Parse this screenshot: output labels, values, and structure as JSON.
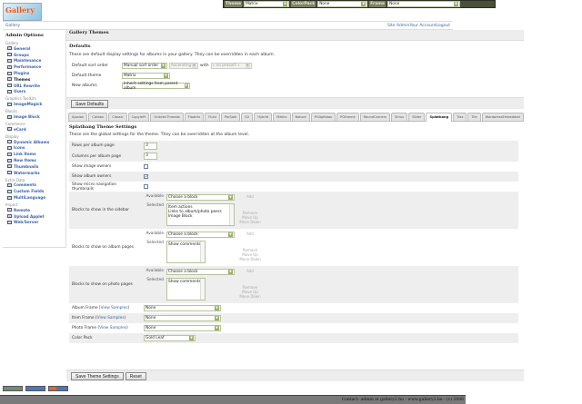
{
  "topbar": {
    "theme_label": "Theme",
    "theme_value": "Matrix",
    "colorpack_label": "ColorPack",
    "colorpack_value": "None",
    "frame_label": "Frame",
    "frame_value": "None"
  },
  "logo": {
    "text": "Gallery"
  },
  "breadcrumb": {
    "root": "Gallery"
  },
  "userlinks": [
    "Site Admin",
    "Your Account",
    "Logout"
  ],
  "sidebar": {
    "title": "Admin Options",
    "groups": [
      {
        "name": "Gallery",
        "items": [
          "General",
          "Groups",
          "Maintenance",
          "Performance",
          "Plugins",
          "Themes",
          "URL Rewrite",
          "Users"
        ]
      },
      {
        "name": "Graphics Toolkits",
        "items": [
          "ImageMagick"
        ]
      },
      {
        "name": "Blocks",
        "items": [
          "Image Block"
        ]
      },
      {
        "name": "Commerce",
        "items": [
          "eCard"
        ]
      },
      {
        "name": "Display",
        "items": [
          "Dynamic Albums",
          "Icons",
          "Link Items",
          "New Items",
          "Thumbnails",
          "Watermarks"
        ]
      },
      {
        "name": "Extra Data",
        "items": [
          "Comments",
          "Custom Fields",
          "MultiLanguage"
        ]
      },
      {
        "name": "Import",
        "items": [
          "Remote",
          "Upload Applet",
          "Web/Server"
        ]
      }
    ],
    "current": "Themes"
  },
  "main": {
    "title": "Gallery Themes",
    "defaults": {
      "heading": "Defaults",
      "desc": "These are default display settings for albums in your gallery. They can be overridden in each album.",
      "sort_label": "Default sort order",
      "sort_value": "Manual sort order",
      "sort_dir": "Ascending",
      "with_label": "with",
      "presort": "« no presort »",
      "theme_label": "Default theme",
      "theme_value": "Matrix",
      "new_label": "New albums",
      "new_value": "Inherit settings from parent album",
      "save": "Save Defaults"
    },
    "tabs": [
      "Ajaxian",
      "Carbon",
      "Classic",
      "CopyleFt",
      "EclecticThreads",
      "Floatrix",
      "Fluid",
      "PorSale",
      "G2",
      "Hybrid",
      "Matrix",
      "Nature",
      "PGlightbox",
      "PGtheme",
      "RoundCorners",
      "Siriux",
      "Slider",
      "Splatbang",
      "Tias",
      "Tile",
      "WordpressEmbedded"
    ],
    "active_tab": "Splatbang",
    "theme_settings": {
      "heading": "Splatbang Theme Settings",
      "desc": "These are the global settings for the theme. They can be overridden at the album level.",
      "rows_label": "Rows per album page",
      "rows_value": "3",
      "cols_label": "Columns per album page",
      "cols_value": "3",
      "image_owners_label": "Show image owners",
      "image_owners": false,
      "album_owners_label": "Show album owners",
      "album_owners": true,
      "micro_label": "Show micro navigation thumbnails",
      "micro": false,
      "available_label": "Available",
      "selected_label": "Selected",
      "choose": "Choose a block",
      "add": "Add",
      "remove": "Remove",
      "up": "Move Up",
      "down": "Move Down",
      "sidebar_label": "Blocks to show in the sidebar",
      "sidebar_blocks": [
        "Item actions",
        "Links to album/photo peers",
        "Image Block"
      ],
      "album_label": "Blocks to show on album pages",
      "album_blocks": [
        "Show comments"
      ],
      "photo_label": "Blocks to show on photo pages",
      "photo_blocks": [
        "Show comments"
      ],
      "view_samples": "View Samples",
      "album_frame_label": "Album Frame",
      "album_frame": "None",
      "item_frame_label": "Item Frame",
      "item_frame": "None",
      "photo_frame_label": "Photo Frame",
      "photo_frame": "None",
      "colorpack_label": "Color Pack",
      "colorpack": "Gold Leaf",
      "save": "Save Theme Settings",
      "reset": "Reset"
    }
  },
  "footer": {
    "text": "Contact: admin at gallery2.hu - www.gallery2.hu - (c) 2006"
  }
}
